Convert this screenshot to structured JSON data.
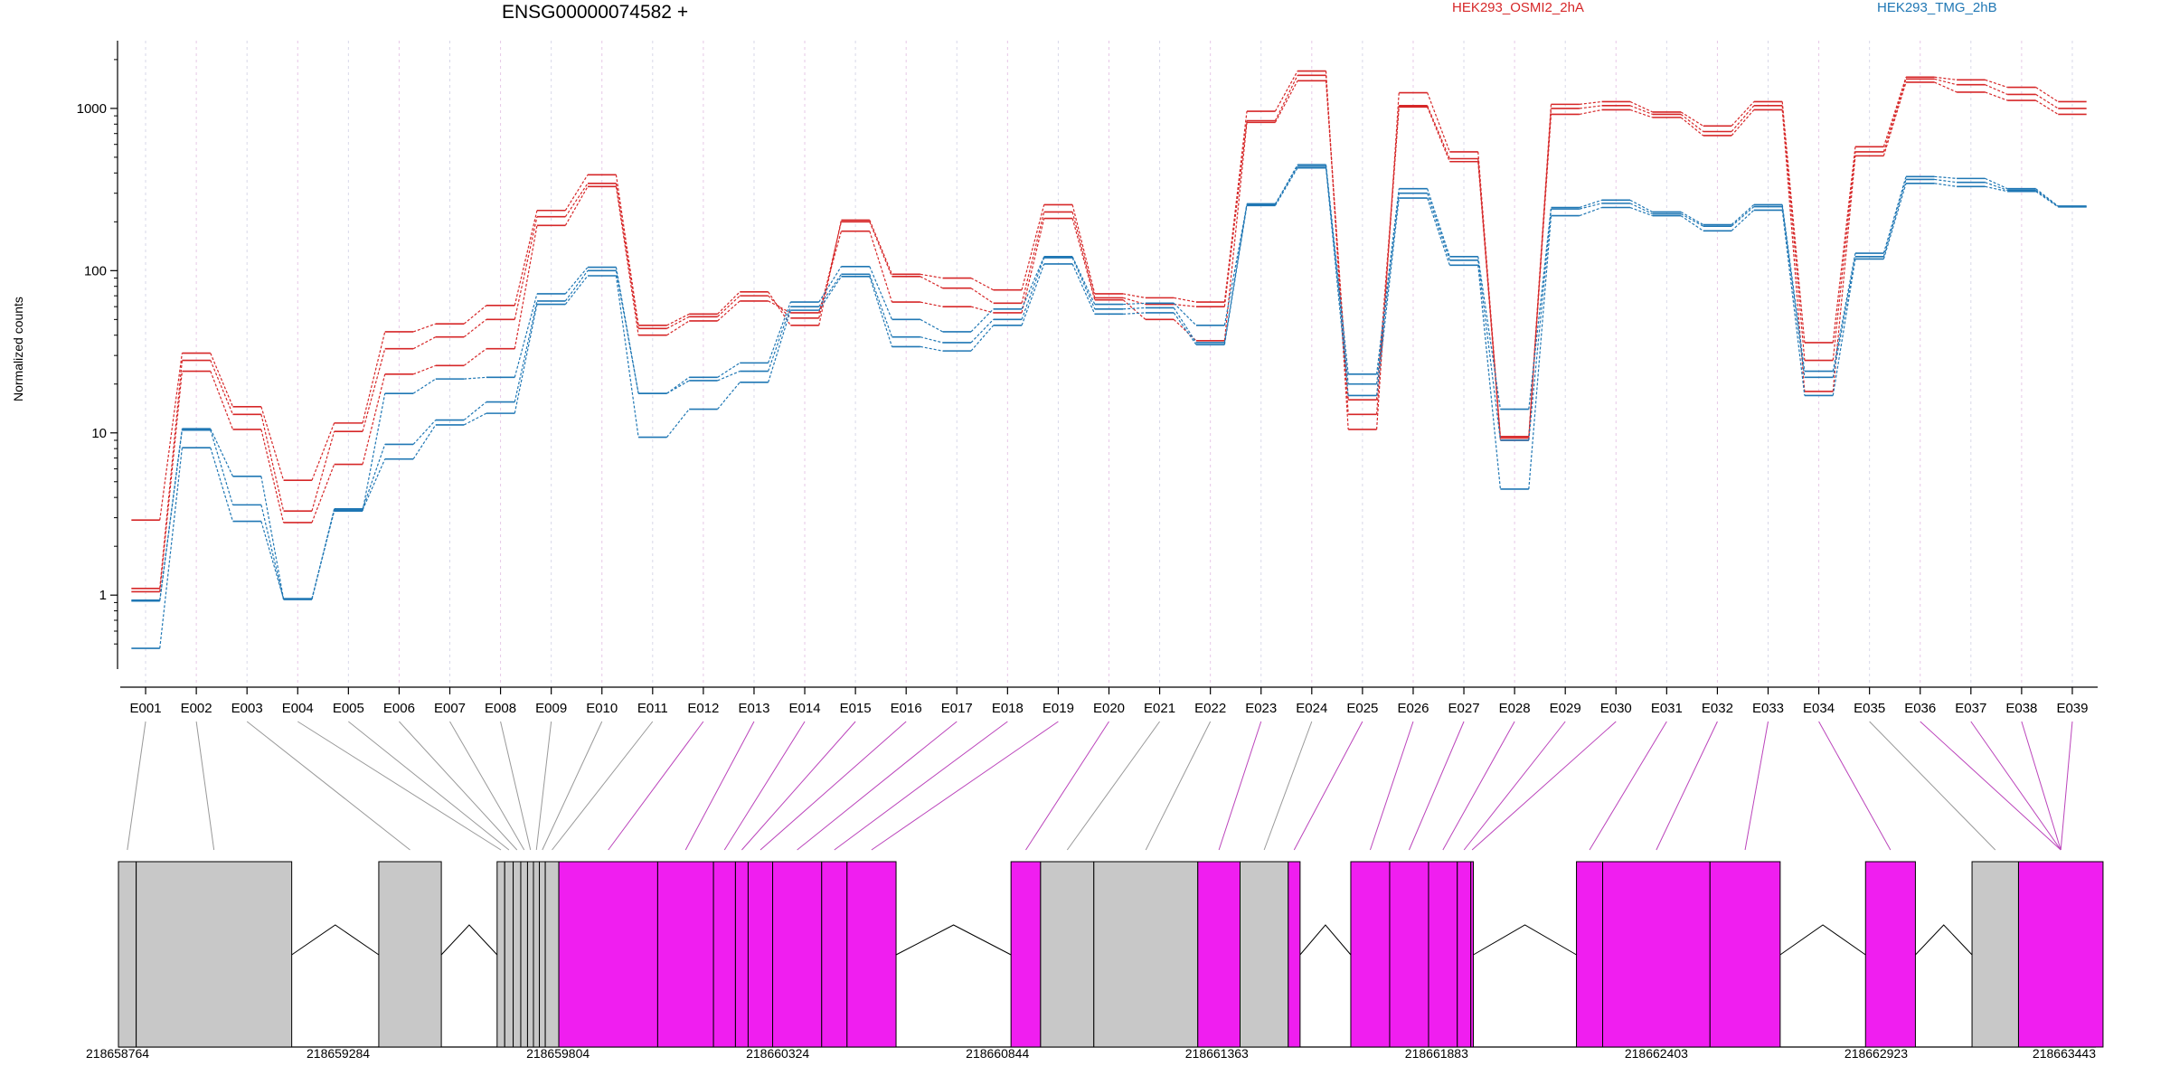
{
  "chart_data": [
    {
      "type": "line",
      "title": "ENSG00000074582 +",
      "ylabel": "Normalized counts",
      "yscale": "log",
      "ylim": [
        0.35,
        2300
      ],
      "yticks": [
        1,
        10,
        100,
        1000
      ],
      "ytick_labels": [
        "1",
        "10",
        "100",
        "1000"
      ],
      "categories": [
        "E001",
        "E002",
        "E003",
        "E004",
        "E005",
        "E006",
        "E007",
        "E008",
        "E009",
        "E010",
        "E011",
        "E012",
        "E013",
        "E014",
        "E015",
        "E016",
        "E017",
        "E018",
        "E019",
        "E020",
        "E021",
        "E022",
        "E023",
        "E024",
        "E025",
        "E026",
        "E027",
        "E028",
        "E029",
        "E030",
        "E031",
        "E032",
        "E033",
        "E034",
        "E035",
        "E036",
        "E037",
        "E038",
        "E039"
      ],
      "legend": [
        "HEK293_OSMI2_2hA",
        "HEK293_TMG_2hB"
      ],
      "legend_position": "top",
      "grid": "vertical dotted",
      "series": [
        {
          "name": "HEK293_OSMI2_2hA",
          "color": "#d62728",
          "values": [
            2.9,
            31,
            14.5,
            5.1,
            11.5,
            42,
            47,
            61,
            235,
            390,
            46,
            54,
            74,
            46,
            205,
            95,
            90,
            76,
            255,
            72,
            68,
            64,
            960,
            1700,
            10.5,
            1250,
            540,
            9.5,
            1060,
            1100,
            950,
            780,
            1100,
            36,
            580,
            1560,
            1500,
            1350,
            1100
          ]
        },
        {
          "name": "HEK293_OSMI2_2hA",
          "color": "#d62728",
          "values": [
            1.1,
            28,
            13,
            3.3,
            10.2,
            33,
            39,
            50,
            215,
            345,
            44,
            52,
            70,
            51,
            200,
            92,
            78,
            63,
            230,
            68,
            62,
            60,
            840,
            1600,
            13,
            1040,
            490,
            9.3,
            1000,
            1040,
            920,
            720,
            1040,
            28,
            540,
            1520,
            1400,
            1220,
            1000
          ]
        },
        {
          "name": "HEK293_OSMI2_2hA",
          "color": "#d62728",
          "values": [
            1.05,
            24,
            10.5,
            2.8,
            6.4,
            23,
            26,
            33,
            190,
            330,
            40,
            49,
            65,
            55,
            175,
            64,
            60,
            55,
            210,
            66,
            50,
            37,
            820,
            1480,
            16,
            1020,
            470,
            9.0,
            920,
            980,
            880,
            680,
            980,
            18,
            510,
            1450,
            1260,
            1120,
            920
          ]
        },
        {
          "name": "HEK293_TMG_2hB",
          "color": "#1f77b4",
          "values": [
            0.93,
            10.6,
            5.4,
            0.95,
            3.3,
            17.5,
            21.5,
            22,
            72,
            105,
            17.5,
            22,
            27,
            64,
            106,
            50,
            42,
            58,
            122,
            62,
            63,
            46,
            255,
            450,
            23,
            320,
            122,
            14,
            245,
            272,
            230,
            192,
            255,
            24,
            128,
            380,
            370,
            320,
            250
          ]
        },
        {
          "name": "HEK293_TMG_2hB",
          "color": "#1f77b4",
          "values": [
            0.92,
            10.4,
            3.6,
            0.94,
            3.4,
            8.5,
            12,
            15.5,
            65,
            100,
            17.5,
            21,
            24,
            60,
            95,
            39,
            36,
            50,
            120,
            58,
            59,
            36,
            258,
            440,
            20,
            300,
            116,
            9.0,
            240,
            260,
            224,
            188,
            248,
            22,
            122,
            365,
            350,
            313,
            248
          ]
        },
        {
          "name": "HEK293_TMG_2hB",
          "color": "#1f77b4",
          "values": [
            0.47,
            8.1,
            2.85,
            0.95,
            3.35,
            6.9,
            11.2,
            13.2,
            62,
            93,
            9.4,
            14,
            20.5,
            57,
            92,
            34,
            32,
            46,
            110,
            54,
            55,
            35,
            252,
            430,
            17,
            280,
            108,
            4.5,
            218,
            245,
            218,
            176,
            236,
            17,
            118,
            345,
            330,
            308,
            247
          ]
        }
      ]
    },
    {
      "type": "gene_model",
      "coordinate_ticks": [
        "218658764",
        "218659284",
        "218659804",
        "218660324",
        "218660844",
        "218661363",
        "218661883",
        "218662403",
        "218662923",
        "218663443"
      ],
      "features": [
        {
          "start": 218658764,
          "end": 218658806,
          "type": "gray"
        },
        {
          "start": 218658806,
          "end": 218659174,
          "type": "gray"
        },
        {
          "start": 218659174,
          "end": 218659380,
          "type": "intron"
        },
        {
          "start": 218659380,
          "end": 218659528,
          "type": "gray"
        },
        {
          "start": 218659528,
          "end": 218659660,
          "type": "intron"
        },
        {
          "start": 218659660,
          "end": 218659678,
          "type": "gray"
        },
        {
          "start": 218659678,
          "end": 218659698,
          "type": "gray"
        },
        {
          "start": 218659698,
          "end": 218659716,
          "type": "gray"
        },
        {
          "start": 218659716,
          "end": 218659732,
          "type": "gray"
        },
        {
          "start": 218659732,
          "end": 218659746,
          "type": "gray"
        },
        {
          "start": 218659746,
          "end": 218659760,
          "type": "gray"
        },
        {
          "start": 218659760,
          "end": 218659774,
          "type": "gray"
        },
        {
          "start": 218659774,
          "end": 218659806,
          "type": "gray"
        },
        {
          "start": 218659806,
          "end": 218660040,
          "type": "magenta"
        },
        {
          "start": 218660040,
          "end": 218660172,
          "type": "magenta"
        },
        {
          "start": 218660172,
          "end": 218660224,
          "type": "magenta"
        },
        {
          "start": 218660224,
          "end": 218660254,
          "type": "magenta"
        },
        {
          "start": 218660254,
          "end": 218660312,
          "type": "magenta"
        },
        {
          "start": 218660312,
          "end": 218660428,
          "type": "magenta"
        },
        {
          "start": 218660428,
          "end": 218660488,
          "type": "magenta"
        },
        {
          "start": 218660488,
          "end": 218660604,
          "type": "magenta"
        },
        {
          "start": 218660604,
          "end": 218660876,
          "type": "intron"
        },
        {
          "start": 218660876,
          "end": 218660946,
          "type": "magenta"
        },
        {
          "start": 218660946,
          "end": 218661072,
          "type": "gray"
        },
        {
          "start": 218661072,
          "end": 218661318,
          "type": "gray"
        },
        {
          "start": 218661318,
          "end": 218661418,
          "type": "magenta"
        },
        {
          "start": 218661418,
          "end": 218661532,
          "type": "gray"
        },
        {
          "start": 218661532,
          "end": 218661560,
          "type": "magenta"
        },
        {
          "start": 218661560,
          "end": 218661680,
          "type": "intron"
        },
        {
          "start": 218661680,
          "end": 218661772,
          "type": "magenta"
        },
        {
          "start": 218661772,
          "end": 218661864,
          "type": "magenta"
        },
        {
          "start": 218661864,
          "end": 218661932,
          "type": "magenta"
        },
        {
          "start": 218661932,
          "end": 218661964,
          "type": "magenta"
        },
        {
          "start": 218661964,
          "end": 218661970,
          "type": "magenta"
        },
        {
          "start": 218661970,
          "end": 218662214,
          "type": "intron"
        },
        {
          "start": 218662214,
          "end": 218662276,
          "type": "magenta"
        },
        {
          "start": 218662276,
          "end": 218662530,
          "type": "magenta"
        },
        {
          "start": 218662530,
          "end": 218662696,
          "type": "magenta"
        },
        {
          "start": 218662696,
          "end": 218662898,
          "type": "intron"
        },
        {
          "start": 218662898,
          "end": 218663016,
          "type": "magenta"
        },
        {
          "start": 218663016,
          "end": 218663150,
          "type": "intron"
        },
        {
          "start": 218663150,
          "end": 218663260,
          "type": "gray"
        },
        {
          "start": 218663260,
          "end": 218663460,
          "type": "magenta"
        }
      ]
    }
  ],
  "colors": {
    "series_a": "#d62728",
    "series_b": "#1f77b4",
    "exon_highlight": "#f01ef0",
    "exon_plain": "#c8c8c8",
    "connector_plain": "#999999",
    "connector_highlight": "#bb44bb"
  }
}
